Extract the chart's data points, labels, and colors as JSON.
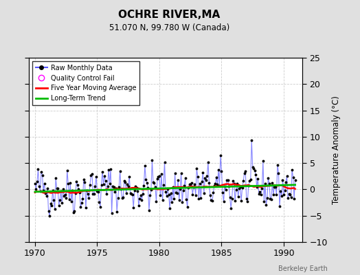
{
  "title": "OCHRE RIVER,MA",
  "subtitle": "51.070 N, 99.780 W (Canada)",
  "ylabel": "Temperature Anomaly (°C)",
  "xlabel_bottom": "Berkeley Earth",
  "xlim": [
    1969.5,
    1991.5
  ],
  "ylim": [
    -10,
    25
  ],
  "yticks": [
    -10,
    -5,
    0,
    5,
    10,
    15,
    20,
    25
  ],
  "xticks": [
    1970,
    1975,
    1980,
    1985,
    1990
  ],
  "background_color": "#e0e0e0",
  "plot_background": "#ffffff",
  "grid_color": "#cccccc",
  "raw_line_color": "#5555ff",
  "raw_line_alpha": 0.7,
  "raw_marker_color": "#000000",
  "qc_fail_color": "#ff00ff",
  "moving_avg_color": "#ff0000",
  "trend_color": "#00bb00",
  "seed": 42,
  "n_months": 252,
  "start_year": 1970.0,
  "noise_std": 2.2,
  "trend_slope": 0.02
}
